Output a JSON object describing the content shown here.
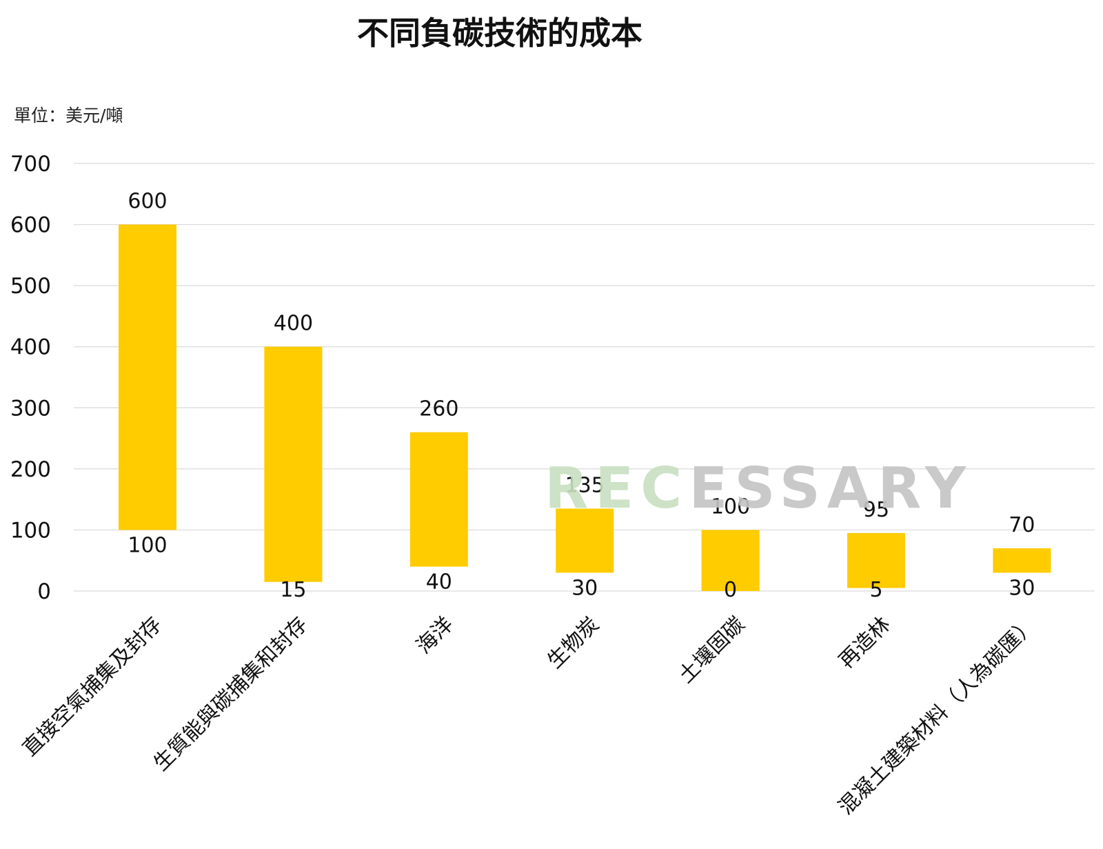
{
  "chart_data": {
    "type": "bar",
    "title": "不同負碳技術的成本",
    "unit_label": "單位：美元/噸",
    "categories": [
      "直接空氣捕集及封存",
      "生質能與碳捕集和封存",
      "海洋",
      "生物炭",
      "土壤固碳",
      "再造林",
      "混凝土建築材料（人為碳匯）"
    ],
    "series": [
      {
        "low": [
          100,
          15,
          40,
          30,
          0,
          5,
          30
        ],
        "high": [
          600,
          400,
          260,
          135,
          100,
          95,
          70
        ]
      }
    ],
    "ylim": [
      0,
      700
    ],
    "yticks": [
      "0",
      "100",
      "200",
      "300",
      "400",
      "500",
      "600",
      "700"
    ],
    "grid": true,
    "bar_color": "#FFCC00",
    "watermark": {
      "prefix": "REC",
      "suffix": "ESSARY",
      "prefix_color": "#C8DFC0",
      "suffix_color": "#C4C4C4"
    }
  }
}
